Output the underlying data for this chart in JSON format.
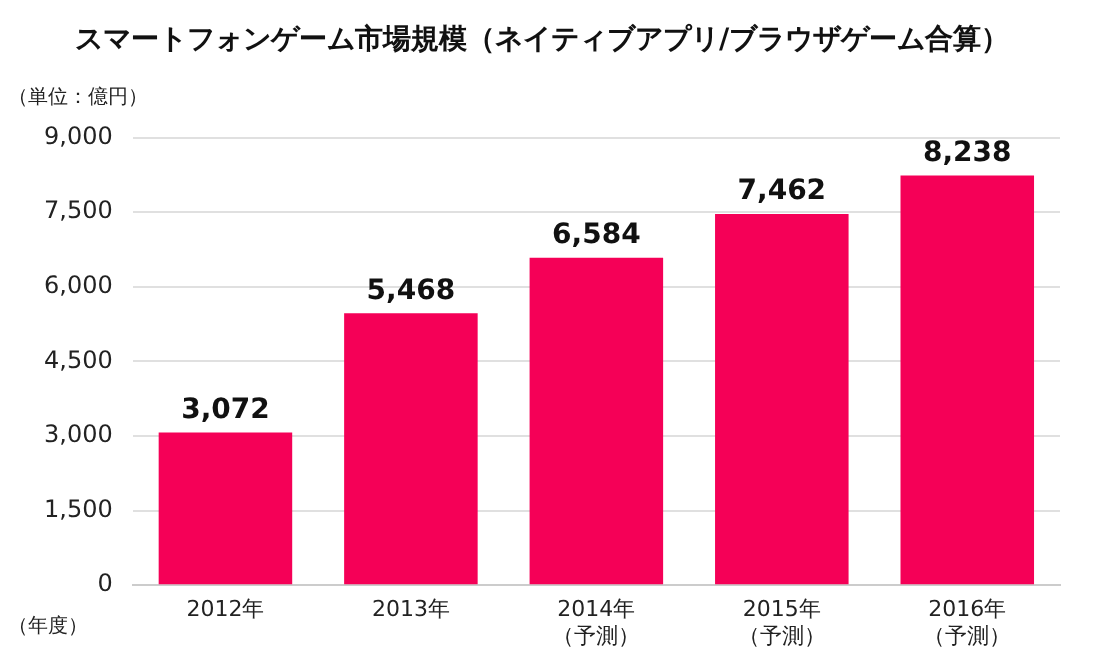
{
  "chart_data": {
    "type": "bar",
    "title": "スマートフォンゲーム市場規模（ネイティブアプリ/ブラウザゲーム合算）",
    "ylabel": "（単位：億円）",
    "xlabel": "（年度）",
    "categories": [
      "2012年",
      "2013年",
      "2014年（予測）",
      "2015年（予測）",
      "2016年（予測）"
    ],
    "values": [
      3072,
      5468,
      6584,
      7462,
      8238
    ],
    "value_labels": [
      "3,072",
      "5,468",
      "6,584",
      "7,462",
      "8,238"
    ],
    "color": "#f50057",
    "ylim": [
      0,
      9000
    ],
    "yticks": [
      {
        "value": 0,
        "label": "0"
      },
      {
        "value": 1500,
        "label": "1,500"
      },
      {
        "value": 3000,
        "label": "3,000"
      },
      {
        "value": 4500,
        "label": "4,500"
      },
      {
        "value": 6000,
        "label": "6,000"
      },
      {
        "value": 7500,
        "label": "7,500"
      },
      {
        "value": 9000,
        "label": "9,000"
      }
    ],
    "grid": "y",
    "legend": false
  }
}
